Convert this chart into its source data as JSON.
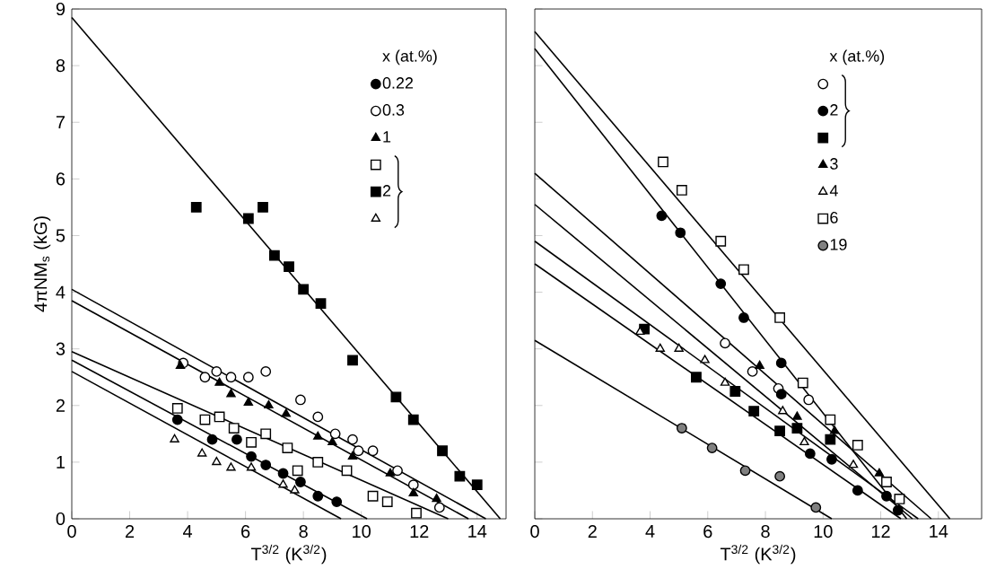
{
  "chart_data": [
    {
      "type": "scatter",
      "xlabel": "T$^{3/2}$ (K$^{3/2}$)",
      "ylabel": "4πNM$_{s}$  (kG)",
      "legend_title": "x (at.%)",
      "legend": "top right",
      "xlim": [
        0,
        15
      ],
      "ylim": [
        0,
        9
      ],
      "xticks": [
        0,
        2,
        4,
        6,
        8,
        10,
        12,
        14
      ],
      "yticks": [
        0,
        1,
        2,
        3,
        4,
        5,
        6,
        7,
        8,
        9
      ],
      "series": [
        {
          "name": "0.22",
          "color": "#000000",
          "marker": "circle",
          "x": [
            3.65,
            4.85,
            5.7,
            6.2,
            6.7,
            7.3,
            7.9,
            8.5,
            9.15
          ],
          "values": [
            1.75,
            1.4,
            1.4,
            1.1,
            0.95,
            0.8,
            0.65,
            0.4,
            0.3
          ]
        },
        {
          "name": "0.3",
          "color": "#ffffff",
          "marker": "circle",
          "x": [
            3.85,
            4.6,
            5.0,
            5.5,
            6.1,
            6.7,
            7.9,
            8.5,
            9.1,
            9.7,
            9.9,
            10.4,
            11.25,
            11.8,
            12.7
          ],
          "values": [
            2.75,
            2.5,
            2.6,
            2.5,
            2.5,
            2.6,
            2.1,
            1.8,
            1.5,
            1.4,
            1.2,
            1.2,
            0.85,
            0.6,
            0.2
          ]
        },
        {
          "name": "1",
          "color": "#000000",
          "marker": "triangle",
          "x": [
            3.75,
            5.1,
            5.5,
            6.1,
            6.8,
            7.4,
            8.5,
            9.0,
            9.7,
            11.0,
            11.8,
            12.6
          ],
          "values": [
            2.7,
            2.4,
            2.2,
            2.05,
            2.0,
            1.85,
            1.45,
            1.35,
            1.1,
            0.8,
            0.45,
            0.35
          ]
        },
        {
          "color": "#ffffff",
          "marker": "square",
          "x": [
            3.65,
            4.6,
            5.1,
            5.6,
            6.2,
            6.7,
            7.45,
            7.8,
            8.5,
            9.5,
            10.4,
            10.9,
            11.9
          ],
          "values": [
            1.95,
            1.75,
            1.8,
            1.6,
            1.35,
            1.5,
            1.25,
            0.85,
            1.0,
            0.85,
            0.4,
            0.3,
            0.1
          ]
        },
        {
          "name": "2",
          "color": "#000000",
          "marker": "square",
          "x": [
            4.3,
            6.1,
            6.6,
            7.0,
            7.5,
            8.0,
            8.6,
            9.7,
            11.2,
            11.8,
            12.8,
            13.4,
            14.0
          ],
          "values": [
            5.5,
            5.3,
            5.5,
            4.65,
            4.45,
            4.05,
            3.8,
            2.8,
            2.15,
            1.75,
            1.2,
            0.75,
            0.6
          ]
        },
        {
          "color": "#ffffff",
          "marker": "triangle",
          "x": [
            3.55,
            4.5,
            5.0,
            5.5,
            6.2,
            7.3,
            7.7
          ],
          "values": [
            1.4,
            1.15,
            1.0,
            0.9,
            0.9,
            0.6,
            0.5
          ]
        },
        {
          "type": "line",
          "color": "#000000",
          "x": [
            0,
            14.8
          ],
          "values": [
            8.85,
            0
          ]
        },
        {
          "type": "line",
          "color": "#000000",
          "x": [
            0,
            14.3
          ],
          "values": [
            4.05,
            0
          ]
        },
        {
          "type": "line",
          "color": "#000000",
          "x": [
            0,
            13.7
          ],
          "values": [
            3.85,
            0
          ]
        },
        {
          "type": "line",
          "color": "#000000",
          "x": [
            0,
            13.0
          ],
          "values": [
            2.95,
            0
          ]
        },
        {
          "type": "line",
          "color": "#000000",
          "x": [
            0,
            10.2
          ],
          "values": [
            2.8,
            0
          ]
        },
        {
          "type": "line",
          "color": "#000000",
          "x": [
            0,
            9.3
          ],
          "values": [
            2.6,
            0
          ]
        }
      ]
    },
    {
      "type": "scatter",
      "xlabel": "T$^{3/2}$ (K$^{3/2}$)",
      "legend_title": "x (at.%)",
      "legend": "top right",
      "tick_labels": "x",
      "xlim": [
        0,
        15.5
      ],
      "ylim": [
        0,
        9
      ],
      "xticks": [
        0,
        2,
        4,
        6,
        8,
        10,
        12,
        14
      ],
      "yticks": [
        0,
        1,
        2,
        3,
        4,
        5,
        6,
        7,
        8,
        9
      ],
      "series": [
        {
          "color": "#ffffff",
          "marker": "circle",
          "x": [
            6.6,
            7.55,
            8.45,
            9.5
          ],
          "values": [
            3.1,
            2.6,
            2.3,
            2.1
          ]
        },
        {
          "name": "2",
          "color": "#000000",
          "marker": "circle",
          "x": [
            4.4,
            5.05,
            6.45,
            7.25,
            8.55,
            8.55,
            9.55,
            10.3,
            11.2,
            12.2,
            12.6
          ],
          "values": [
            5.35,
            5.05,
            4.15,
            3.55,
            2.75,
            2.2,
            1.15,
            1.05,
            0.5,
            0.4,
            0.15
          ]
        },
        {
          "color": "#000000",
          "marker": "square",
          "x": [
            3.8,
            5.6,
            6.95,
            7.6,
            8.5,
            9.1,
            10.25
          ],
          "values": [
            3.35,
            2.5,
            2.25,
            1.9,
            1.55,
            1.6,
            1.4
          ]
        },
        {
          "name": "3",
          "color": "#000000",
          "marker": "triangle",
          "x": [
            7.8,
            9.1,
            10.4,
            11.95
          ],
          "values": [
            2.7,
            1.8,
            1.55,
            0.8
          ]
        },
        {
          "name": "4",
          "color": "#ffffff",
          "marker": "triangle",
          "x": [
            3.65,
            4.35,
            5.0,
            5.9,
            6.6,
            8.6,
            9.35,
            11.05
          ],
          "values": [
            3.3,
            3.0,
            3.0,
            2.8,
            2.4,
            1.9,
            1.35,
            0.95
          ]
        },
        {
          "name": "6",
          "color": "#ffffff",
          "marker": "square",
          "x": [
            4.45,
            5.1,
            6.45,
            7.25,
            8.5,
            9.3,
            10.25,
            11.2,
            12.2,
            12.65
          ],
          "values": [
            6.3,
            5.8,
            4.9,
            4.4,
            3.55,
            2.4,
            1.75,
            1.3,
            0.65,
            0.35
          ]
        },
        {
          "name": "19",
          "color": "#808080",
          "marker": "circle",
          "x": [
            5.1,
            6.15,
            7.3,
            8.5,
            9.75
          ],
          "values": [
            1.6,
            1.25,
            0.85,
            0.75,
            0.2
          ]
        },
        {
          "type": "line",
          "color": "#000000",
          "x": [
            0,
            14.4
          ],
          "values": [
            8.6,
            0
          ]
        },
        {
          "type": "line",
          "color": "#000000",
          "x": [
            0,
            12.9
          ],
          "values": [
            8.3,
            0
          ]
        },
        {
          "type": "line",
          "color": "#000000",
          "x": [
            0,
            13.75
          ],
          "values": [
            6.1,
            0
          ]
        },
        {
          "type": "line",
          "color": "#000000",
          "x": [
            0,
            13.1
          ],
          "values": [
            5.55,
            0
          ]
        },
        {
          "type": "line",
          "color": "#000000",
          "x": [
            0,
            13.3
          ],
          "values": [
            4.9,
            0
          ]
        },
        {
          "type": "line",
          "color": "#000000",
          "x": [
            0,
            12.7
          ],
          "values": [
            4.5,
            0
          ]
        },
        {
          "type": "line",
          "color": "#000000",
          "x": [
            0,
            10.3
          ],
          "values": [
            3.15,
            0
          ]
        }
      ]
    }
  ]
}
